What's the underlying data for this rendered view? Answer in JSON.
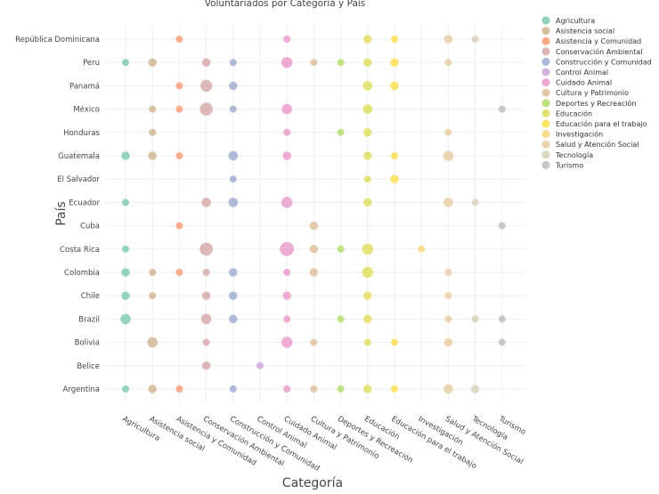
{
  "chart_data": {
    "type": "scatter",
    "title": "Voluntariados por Categoría y País",
    "xlabel": "Categoría",
    "ylabel": "País",
    "grid": true,
    "legend_position": "top-right",
    "categories": [
      "Agricultura",
      "Asistencia social",
      "Asistencia y Comunidad",
      "Conservación Ambiental",
      "Construcción y Comunidad",
      "Control Animal",
      "Cuidado Animal",
      "Cultura y Patrimonio",
      "Deportes y Recreación",
      "Educación",
      "Educación para el trabajo",
      "Investigación",
      "Salud y Atención Social",
      "Tecnología",
      "Turismo"
    ],
    "countries": [
      "Argentina",
      "Belice",
      "Bolivia",
      "Brazil",
      "Chile",
      "Colombia",
      "Costa Rica",
      "Cuba",
      "Ecuador",
      "El Salvador",
      "Guatemala",
      "Honduras",
      "México",
      "Panamá",
      "Peru",
      "República Dominicana"
    ],
    "colors": {
      "Agricultura": "#66c2a5",
      "Asistencia social": "#c9a97f",
      "Asistencia y Comunidad": "#fc8d62",
      "Conservación Ambiental": "#d19a9a",
      "Construcción y Comunidad": "#8da0cb",
      "Control Animal": "#c49bd6",
      "Cuidado Animal": "#e78ac3",
      "Cultura y Patrimonio": "#d9b68c",
      "Deportes y Recreación": "#a6d854",
      "Educación": "#dada44",
      "Educación para el trabajo": "#ffd92f",
      "Investigación": "#f5cf6a",
      "Salud y Atención Social": "#e5c494",
      "Tecnología": "#d2c9ad",
      "Turismo": "#b3b3b3"
    },
    "points": [
      {
        "country": "República Dominicana",
        "category": "Asistencia y Comunidad",
        "value": 1
      },
      {
        "country": "República Dominicana",
        "category": "Cuidado Animal",
        "value": 1
      },
      {
        "country": "República Dominicana",
        "category": "Educación",
        "value": 2
      },
      {
        "country": "República Dominicana",
        "category": "Educación para el trabajo",
        "value": 1
      },
      {
        "country": "República Dominicana",
        "category": "Salud y Atención Social",
        "value": 2
      },
      {
        "country": "República Dominicana",
        "category": "Tecnología",
        "value": 1
      },
      {
        "country": "Peru",
        "category": "Agricultura",
        "value": 1
      },
      {
        "country": "Peru",
        "category": "Asistencia social",
        "value": 2
      },
      {
        "country": "Peru",
        "category": "Conservación Ambiental",
        "value": 2
      },
      {
        "country": "Peru",
        "category": "Construcción y Comunidad",
        "value": 1
      },
      {
        "country": "Peru",
        "category": "Cuidado Animal",
        "value": 5
      },
      {
        "country": "Peru",
        "category": "Cultura y Patrimonio",
        "value": 1
      },
      {
        "country": "Peru",
        "category": "Deportes y Recreación",
        "value": 1
      },
      {
        "country": "Peru",
        "category": "Educación",
        "value": 2
      },
      {
        "country": "Peru",
        "category": "Educación para el trabajo",
        "value": 2
      },
      {
        "country": "Peru",
        "category": "Salud y Atención Social",
        "value": 1
      },
      {
        "country": "Panamá",
        "category": "Asistencia y Comunidad",
        "value": 1
      },
      {
        "country": "Panamá",
        "category": "Conservación Ambiental",
        "value": 6
      },
      {
        "country": "Panamá",
        "category": "Construcción y Comunidad",
        "value": 2
      },
      {
        "country": "Panamá",
        "category": "Educación",
        "value": 3
      },
      {
        "country": "Panamá",
        "category": "Educación para el trabajo",
        "value": 2
      },
      {
        "country": "México",
        "category": "Asistencia social",
        "value": 1
      },
      {
        "country": "México",
        "category": "Asistencia y Comunidad",
        "value": 1
      },
      {
        "country": "México",
        "category": "Conservación Ambiental",
        "value": 8
      },
      {
        "country": "México",
        "category": "Construcción y Comunidad",
        "value": 1
      },
      {
        "country": "México",
        "category": "Cuidado Animal",
        "value": 4
      },
      {
        "country": "México",
        "category": "Educación",
        "value": 3
      },
      {
        "country": "México",
        "category": "Turismo",
        "value": 1
      },
      {
        "country": "Honduras",
        "category": "Asistencia social",
        "value": 1
      },
      {
        "country": "Honduras",
        "category": "Cuidado Animal",
        "value": 1
      },
      {
        "country": "Honduras",
        "category": "Deportes y Recreación",
        "value": 1
      },
      {
        "country": "Honduras",
        "category": "Educación",
        "value": 2
      },
      {
        "country": "Honduras",
        "category": "Salud y Atención Social",
        "value": 1
      },
      {
        "country": "Guatemala",
        "category": "Agricultura",
        "value": 2
      },
      {
        "country": "Guatemala",
        "category": "Asistencia social",
        "value": 2
      },
      {
        "country": "Guatemala",
        "category": "Asistencia y Comunidad",
        "value": 1
      },
      {
        "country": "Guatemala",
        "category": "Construcción y Comunidad",
        "value": 3
      },
      {
        "country": "Guatemala",
        "category": "Cuidado Animal",
        "value": 2
      },
      {
        "country": "Guatemala",
        "category": "Educación",
        "value": 2
      },
      {
        "country": "Guatemala",
        "category": "Educación para el trabajo",
        "value": 1
      },
      {
        "country": "Guatemala",
        "category": "Salud y Atención Social",
        "value": 4
      },
      {
        "country": "El Salvador",
        "category": "Construcción y Comunidad",
        "value": 1
      },
      {
        "country": "El Salvador",
        "category": "Educación",
        "value": 1
      },
      {
        "country": "El Salvador",
        "category": "Educación para el trabajo",
        "value": 2
      },
      {
        "country": "Ecuador",
        "category": "Agricultura",
        "value": 1
      },
      {
        "country": "Ecuador",
        "category": "Conservación Ambiental",
        "value": 3
      },
      {
        "country": "Ecuador",
        "category": "Construcción y Comunidad",
        "value": 3
      },
      {
        "country": "Ecuador",
        "category": "Cuidado Animal",
        "value": 5
      },
      {
        "country": "Ecuador",
        "category": "Educación",
        "value": 2
      },
      {
        "country": "Ecuador",
        "category": "Salud y Atención Social",
        "value": 3
      },
      {
        "country": "Ecuador",
        "category": "Tecnología",
        "value": 1
      },
      {
        "country": "Cuba",
        "category": "Asistencia y Comunidad",
        "value": 1
      },
      {
        "country": "Cuba",
        "category": "Cultura y Patrimonio",
        "value": 2
      },
      {
        "country": "Cuba",
        "category": "Turismo",
        "value": 1
      },
      {
        "country": "Costa Rica",
        "category": "Agricultura",
        "value": 1
      },
      {
        "country": "Costa Rica",
        "category": "Conservación Ambiental",
        "value": 8
      },
      {
        "country": "Costa Rica",
        "category": "Cuidado Animal",
        "value": 10
      },
      {
        "country": "Costa Rica",
        "category": "Cultura y Patrimonio",
        "value": 2
      },
      {
        "country": "Costa Rica",
        "category": "Deportes y Recreación",
        "value": 1
      },
      {
        "country": "Costa Rica",
        "category": "Educación",
        "value": 5
      },
      {
        "country": "Costa Rica",
        "category": "Investigación",
        "value": 1
      },
      {
        "country": "Colombia",
        "category": "Agricultura",
        "value": 2
      },
      {
        "country": "Colombia",
        "category": "Asistencia social",
        "value": 1
      },
      {
        "country": "Colombia",
        "category": "Asistencia y Comunidad",
        "value": 1
      },
      {
        "country": "Colombia",
        "category": "Conservación Ambiental",
        "value": 1
      },
      {
        "country": "Colombia",
        "category": "Construcción y Comunidad",
        "value": 2
      },
      {
        "country": "Colombia",
        "category": "Cuidado Animal",
        "value": 1
      },
      {
        "country": "Colombia",
        "category": "Cultura y Patrimonio",
        "value": 2
      },
      {
        "country": "Colombia",
        "category": "Educación",
        "value": 5
      },
      {
        "country": "Colombia",
        "category": "Salud y Atención Social",
        "value": 1
      },
      {
        "country": "Chile",
        "category": "Agricultura",
        "value": 2
      },
      {
        "country": "Chile",
        "category": "Asistencia social",
        "value": 1
      },
      {
        "country": "Chile",
        "category": "Conservación Ambiental",
        "value": 2
      },
      {
        "country": "Chile",
        "category": "Construcción y Comunidad",
        "value": 2
      },
      {
        "country": "Chile",
        "category": "Cuidado Animal",
        "value": 2
      },
      {
        "country": "Chile",
        "category": "Educación",
        "value": 2
      },
      {
        "country": "Chile",
        "category": "Salud y Atención Social",
        "value": 1
      },
      {
        "country": "Brazil",
        "category": "Agricultura",
        "value": 4
      },
      {
        "country": "Brazil",
        "category": "Conservación Ambiental",
        "value": 4
      },
      {
        "country": "Brazil",
        "category": "Construcción y Comunidad",
        "value": 2
      },
      {
        "country": "Brazil",
        "category": "Cuidado Animal",
        "value": 1
      },
      {
        "country": "Brazil",
        "category": "Deportes y Recreación",
        "value": 1
      },
      {
        "country": "Brazil",
        "category": "Educación",
        "value": 2
      },
      {
        "country": "Brazil",
        "category": "Salud y Atención Social",
        "value": 1
      },
      {
        "country": "Brazil",
        "category": "Tecnología",
        "value": 1
      },
      {
        "country": "Brazil",
        "category": "Turismo",
        "value": 1
      },
      {
        "country": "Bolivia",
        "category": "Asistencia social",
        "value": 4
      },
      {
        "country": "Bolivia",
        "category": "Conservación Ambiental",
        "value": 1
      },
      {
        "country": "Bolivia",
        "category": "Cuidado Animal",
        "value": 5
      },
      {
        "country": "Bolivia",
        "category": "Cultura y Patrimonio",
        "value": 1
      },
      {
        "country": "Bolivia",
        "category": "Educación",
        "value": 1
      },
      {
        "country": "Bolivia",
        "category": "Educación para el trabajo",
        "value": 1
      },
      {
        "country": "Bolivia",
        "category": "Salud y Atención Social",
        "value": 2
      },
      {
        "country": "Bolivia",
        "category": "Turismo",
        "value": 1
      },
      {
        "country": "Belice",
        "category": "Conservación Ambiental",
        "value": 2
      },
      {
        "country": "Belice",
        "category": "Control Animal",
        "value": 1
      },
      {
        "country": "Argentina",
        "category": "Agricultura",
        "value": 1
      },
      {
        "country": "Argentina",
        "category": "Asistencia social",
        "value": 2
      },
      {
        "country": "Argentina",
        "category": "Asistencia y Comunidad",
        "value": 1
      },
      {
        "country": "Argentina",
        "category": "Construcción y Comunidad",
        "value": 1
      },
      {
        "country": "Argentina",
        "category": "Cuidado Animal",
        "value": 1
      },
      {
        "country": "Argentina",
        "category": "Cultura y Patrimonio",
        "value": 1
      },
      {
        "country": "Argentina",
        "category": "Deportes y Recreación",
        "value": 1
      },
      {
        "country": "Argentina",
        "category": "Educación",
        "value": 2
      },
      {
        "country": "Argentina",
        "category": "Educación para el trabajo",
        "value": 1
      },
      {
        "country": "Argentina",
        "category": "Salud y Atención Social",
        "value": 3
      },
      {
        "country": "Argentina",
        "category": "Tecnología",
        "value": 2
      }
    ]
  }
}
